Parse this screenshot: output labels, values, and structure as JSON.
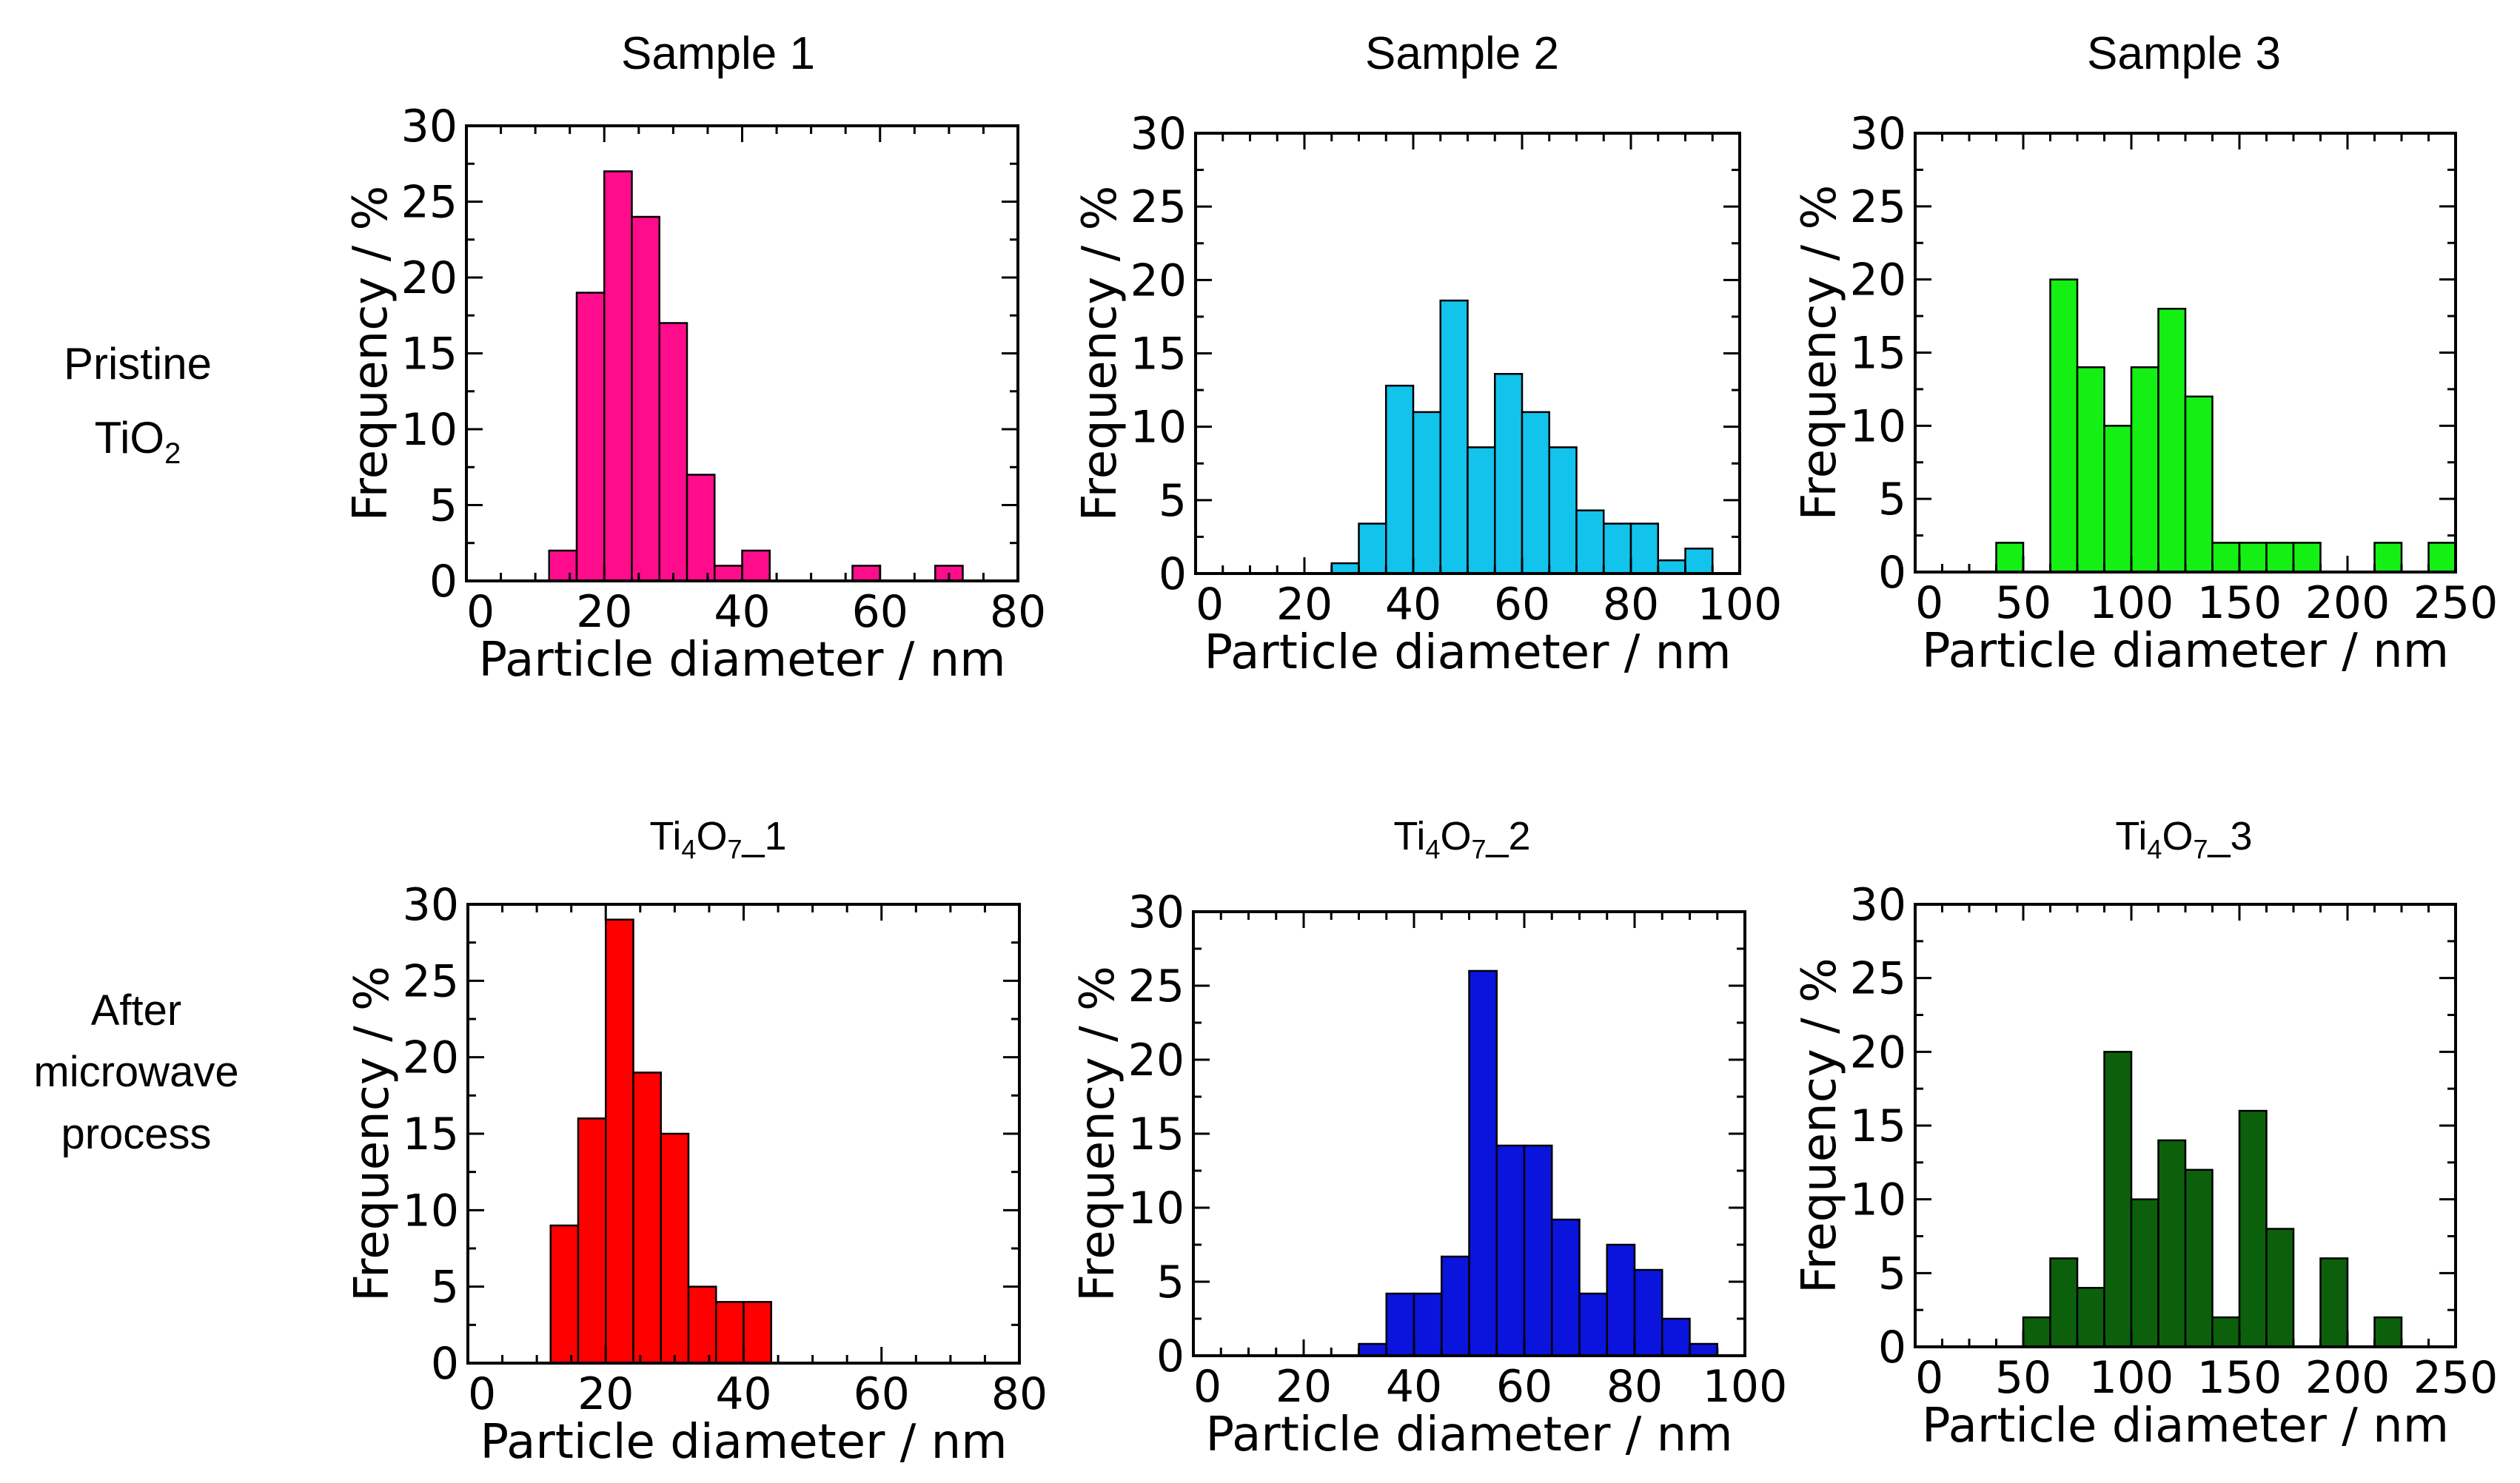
{
  "figure": {
    "column_titles": [
      "Sample 1",
      "Sample 2",
      "Sample 3"
    ],
    "row_labels": [
      {
        "line1": "Pristine",
        "line2_base": "TiO",
        "line2_sub": "2"
      },
      {
        "line1": "After",
        "line2": "microwave",
        "line3": "process"
      }
    ],
    "subplot_titles_row2": [
      {
        "a": "Ti",
        "s1": "4",
        "b": "O",
        "s2": "7",
        "c": "_1"
      },
      {
        "a": "Ti",
        "s1": "4",
        "b": "O",
        "s2": "7",
        "c": "_2"
      },
      {
        "a": "Ti",
        "s1": "4",
        "b": "O",
        "s2": "7",
        "c": "_3"
      }
    ]
  },
  "chart_data": [
    {
      "type": "bar",
      "panel": "Sample 1",
      "color": "#FF0C8C",
      "xlabel": "Particle diameter / nm",
      "ylabel": "Frequency / %",
      "xlim": [
        0,
        80
      ],
      "ylim": [
        0,
        30
      ],
      "xticks": [
        0,
        20,
        40,
        60,
        80
      ],
      "yticks": [
        0,
        5,
        10,
        15,
        20,
        25,
        30
      ],
      "bin_width": 4,
      "bin_starts": [
        12,
        16,
        20,
        24,
        28,
        32,
        36,
        40,
        56,
        68
      ],
      "values": [
        2,
        19,
        27,
        24,
        17,
        7,
        1,
        2,
        1,
        1
      ]
    },
    {
      "type": "bar",
      "panel": "Sample 2",
      "color": "#12C3EC",
      "xlabel": "Particle diameter / nm",
      "ylabel": "Frequency / %",
      "xlim": [
        0,
        100
      ],
      "ylim": [
        0,
        30
      ],
      "xticks": [
        0,
        20,
        40,
        60,
        80,
        100
      ],
      "yticks": [
        0,
        5,
        10,
        15,
        20,
        25,
        30
      ],
      "bin_width": 5,
      "bin_starts": [
        25,
        30,
        35,
        40,
        45,
        50,
        55,
        60,
        65,
        70,
        75,
        80,
        85,
        90
      ],
      "values": [
        0.7,
        3.4,
        12.8,
        11,
        18.6,
        8.6,
        13.6,
        11,
        8.6,
        4.3,
        3.4,
        3.4,
        0.9,
        1.7
      ]
    },
    {
      "type": "bar",
      "panel": "Sample 3",
      "color": "#14F014",
      "xlabel": "Particle diameter / nm",
      "ylabel": "Frequency / %",
      "xlim": [
        0,
        250
      ],
      "ylim": [
        0,
        30
      ],
      "xticks": [
        0,
        50,
        100,
        150,
        200,
        250
      ],
      "yticks": [
        0,
        5,
        10,
        15,
        20,
        25,
        30
      ],
      "bin_width": 12.5,
      "bin_starts": [
        37.5,
        62.5,
        75,
        87.5,
        100,
        112.5,
        125,
        137.5,
        150,
        162.5,
        175,
        212.5,
        237.5
      ],
      "values": [
        2,
        20,
        14,
        10,
        14,
        18,
        12,
        2,
        2,
        2,
        2,
        2,
        2
      ]
    },
    {
      "type": "bar",
      "panel": "Ti4O7_1",
      "color": "#FF0000",
      "xlabel": "Particle diameter / nm",
      "ylabel": "Frequency / %",
      "xlim": [
        0,
        80
      ],
      "ylim": [
        0,
        30
      ],
      "xticks": [
        0,
        20,
        40,
        60,
        80
      ],
      "yticks": [
        0,
        5,
        10,
        15,
        20,
        25,
        30
      ],
      "bin_width": 4,
      "bin_starts": [
        12,
        16,
        20,
        24,
        28,
        32,
        36,
        40
      ],
      "values": [
        9,
        16,
        29,
        19,
        15,
        5,
        4,
        4
      ]
    },
    {
      "type": "bar",
      "panel": "Ti4O7_2",
      "color": "#0A14DC",
      "xlabel": "Particle diameter / nm",
      "ylabel": "Frequency / %",
      "xlim": [
        0,
        100
      ],
      "ylim": [
        0,
        30
      ],
      "xticks": [
        0,
        20,
        40,
        60,
        80,
        100
      ],
      "yticks": [
        0,
        5,
        10,
        15,
        20,
        25,
        30
      ],
      "bin_width": 5,
      "bin_starts": [
        30,
        35,
        40,
        45,
        50,
        55,
        60,
        65,
        70,
        75,
        80,
        85,
        90
      ],
      "values": [
        0.8,
        4.2,
        4.2,
        6.7,
        26,
        14.2,
        14.2,
        9.2,
        4.2,
        7.5,
        5.8,
        2.5,
        0.8
      ]
    },
    {
      "type": "bar",
      "panel": "Ti4O7_3",
      "color": "#0C600C",
      "xlabel": "Particle diameter / nm",
      "ylabel": "Frequency / %",
      "xlim": [
        0,
        250
      ],
      "ylim": [
        0,
        30
      ],
      "xticks": [
        0,
        50,
        100,
        150,
        200,
        250
      ],
      "yticks": [
        0,
        5,
        10,
        15,
        20,
        25,
        30
      ],
      "bin_width": 12.5,
      "bin_starts": [
        50,
        62.5,
        75,
        87.5,
        100,
        112.5,
        125,
        137.5,
        150,
        162.5,
        187.5,
        212.5
      ],
      "values": [
        2,
        6,
        4,
        20,
        10,
        14,
        12,
        2,
        16,
        8,
        6,
        2
      ]
    }
  ]
}
